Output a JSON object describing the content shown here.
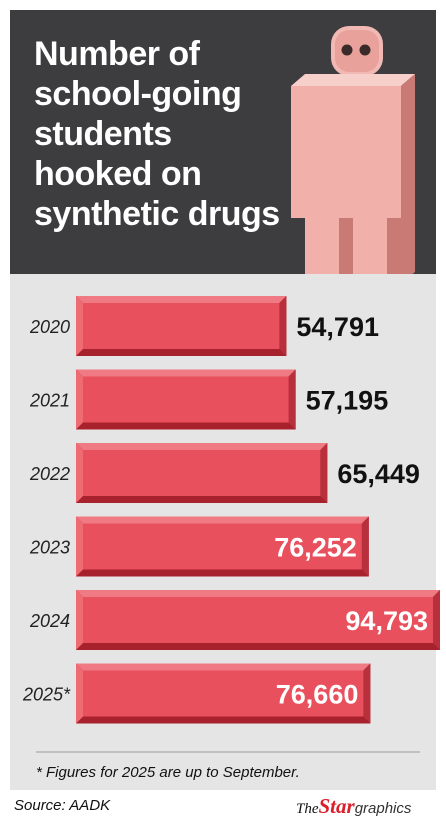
{
  "header": {
    "title": "Number of\nschool-going\nstudents\nhooked on\nsynthetic drugs"
  },
  "chart_data": {
    "type": "bar",
    "orientation": "horizontal",
    "title": "Number of school-going students hooked on synthetic drugs",
    "categories": [
      "2020",
      "2021",
      "2022",
      "2023",
      "2024",
      "2025*"
    ],
    "values": [
      54791,
      57195,
      65449,
      76252,
      94793,
      76660
    ],
    "value_labels": [
      "54,791",
      "57,195",
      "65,449",
      "76,252",
      "94,793",
      "76,660"
    ],
    "xlabel": "",
    "ylabel": "",
    "xlim": [
      0,
      94793
    ],
    "grid": false,
    "legend": "none",
    "colors": {
      "bar": "#e7505c",
      "bar_top": "#f07a83",
      "bar_bottom": "#a8222d",
      "label_outside": "#111111",
      "label_inside": "#ffffff"
    }
  },
  "footnote": "* Figures for 2025 are up to September.",
  "source": "Source: AADK",
  "brand": {
    "the": "The",
    "star": "Star",
    "graphics": "graphics"
  },
  "icons": [
    "person-figure-icon"
  ],
  "colors": {
    "header_bg": "#3d3d3f",
    "panel_bg": "#e5e5e6",
    "figure": "#f0b1ad"
  }
}
